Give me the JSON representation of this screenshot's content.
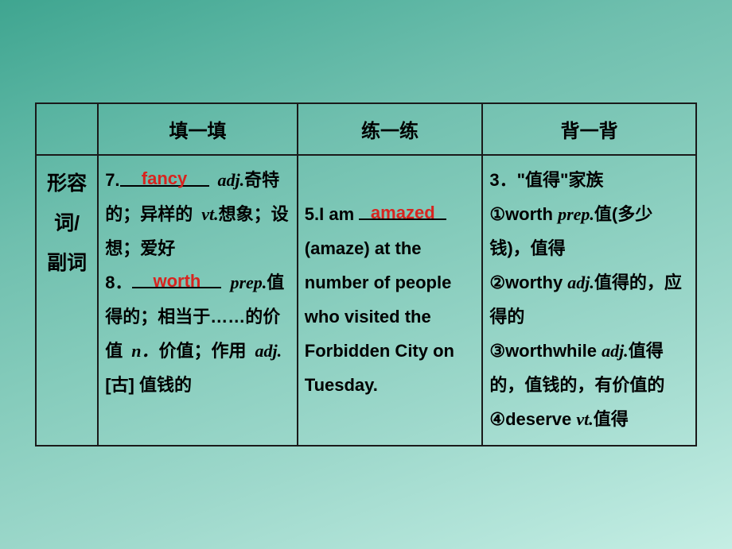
{
  "headers": {
    "col1": "填一填",
    "col2": "练一练",
    "col3": "背一背"
  },
  "rowHeader": "形容词/副词",
  "col1": {
    "item7_num": "7.",
    "item7_answer": "fancy",
    "item7_pos": "adj.",
    "item7_def1": "奇特的；异样的",
    "item7_pos2": "vt.",
    "item7_def2": "想象；设想；爱好",
    "item8_num": "8．",
    "item8_answer": "worth",
    "item8_pos": "prep.",
    "item8_def1": "值得的；相当于……的价值",
    "item8_pos2": "n．",
    "item8_def2": "价值；作用",
    "item8_pos3": "adj.",
    "item8_bracket": "[古]",
    "item8_def3": " 值钱的"
  },
  "col2": {
    "num": "5.",
    "pre": "I am ",
    "answer": "amazed",
    "hint_open": "(",
    "hint_word": "amaze",
    "hint_close": ")",
    "rest": " at the number of people who visited the Forbidden City on Tuesday."
  },
  "col3": {
    "num": "3．",
    "title": "\"值得\"家族",
    "i1_mark": "①",
    "i1_word": "worth ",
    "i1_pos": "prep.",
    "i1_def_a": "值(多少钱)",
    "i1_comma": "，",
    "i1_def_b": "值得",
    "i2_mark": "②",
    "i2_word": "worthy ",
    "i2_pos": "adj.",
    "i2_def": "值得的，应得的",
    "i3_mark": "③",
    "i3_word": "worthwhile ",
    "i3_pos": "adj.",
    "i3_def": "值得的，值钱的，有价值的",
    "i4_mark": "④",
    "i4_word": "deserve ",
    "i4_pos": "vt.",
    "i4_def": "值得"
  },
  "colWidths": {
    "c0": 78,
    "c1": 250,
    "c2": 232,
    "c3": 268
  },
  "underlineWidths": {
    "u7": 112,
    "u8": 112,
    "u5": 110
  },
  "colors": {
    "answer": "#d8241f",
    "border": "#1a1a1a"
  }
}
